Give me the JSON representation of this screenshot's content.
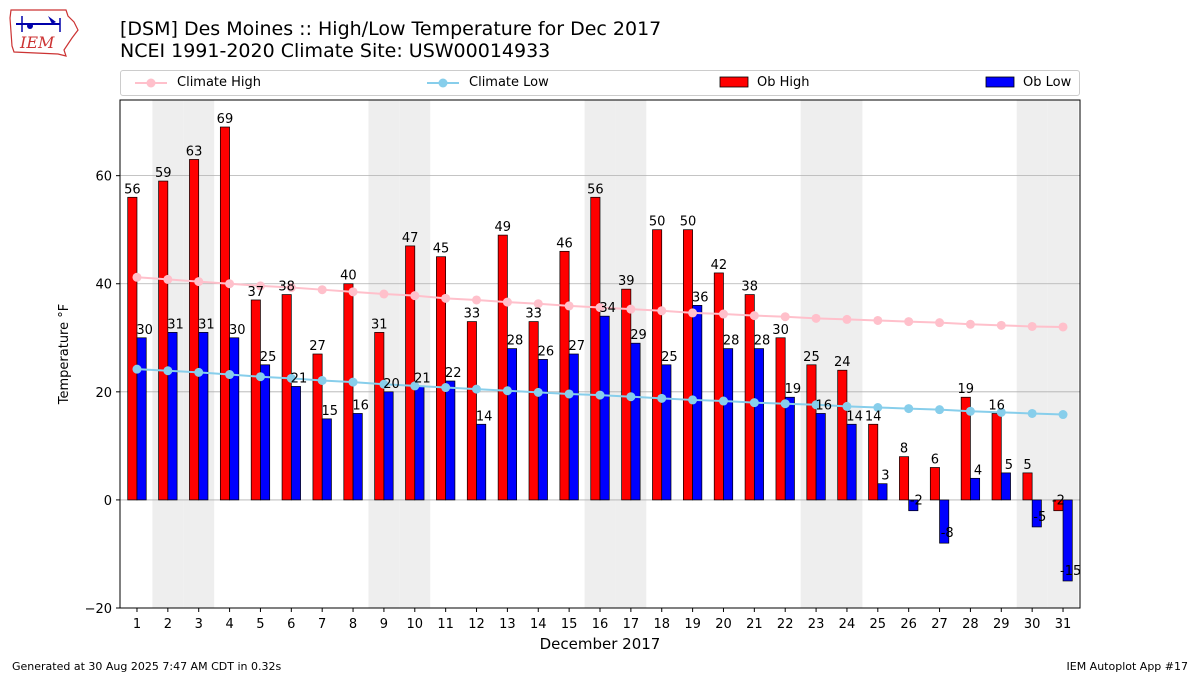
{
  "title_line1": "[DSM] Des Moines :: High/Low Temperature for Dec 2017",
  "title_line2": "NCEI 1991-2020 Climate Site: USW00014933",
  "logo_text": "IEM",
  "footer_left": "Generated at 30 Aug 2025 7:47 AM CDT in 0.32s",
  "footer_right": "IEM Autoplot App #17",
  "legend": {
    "climate_high": "Climate High",
    "climate_low": "Climate Low",
    "ob_high": "Ob High",
    "ob_low": "Ob Low"
  },
  "colors": {
    "ob_high": "#ff0000",
    "ob_low": "#0000ff",
    "climate_high": "#ffc0cb",
    "climate_low": "#87ceeb",
    "weekend_shade": "#eeeeee",
    "grid": "#b0b0b0"
  },
  "chart_data": {
    "type": "bar",
    "xlabel": "December 2017",
    "ylabel": "Temperature °F",
    "ylim": [
      -20,
      74
    ],
    "yticks": [
      -20,
      0,
      20,
      40,
      60
    ],
    "grid": "horizontal",
    "legend_position": "top",
    "categories": [
      "1",
      "2",
      "3",
      "4",
      "5",
      "6",
      "7",
      "8",
      "9",
      "10",
      "11",
      "12",
      "13",
      "14",
      "15",
      "16",
      "17",
      "18",
      "19",
      "20",
      "21",
      "22",
      "23",
      "24",
      "25",
      "26",
      "27",
      "28",
      "29",
      "30",
      "31"
    ],
    "shaded_days": [
      2,
      3,
      9,
      10,
      16,
      17,
      23,
      24,
      30,
      31
    ],
    "series": [
      {
        "name": "Ob High",
        "kind": "bar",
        "values": [
          56,
          59,
          63,
          69,
          37,
          38,
          27,
          40,
          31,
          47,
          45,
          33,
          49,
          33,
          46,
          56,
          39,
          50,
          50,
          42,
          38,
          30,
          25,
          24,
          14,
          8,
          6,
          19,
          16,
          5,
          -2
        ]
      },
      {
        "name": "Ob Low",
        "kind": "bar",
        "values": [
          30,
          31,
          31,
          30,
          25,
          21,
          15,
          16,
          20,
          21,
          22,
          14,
          28,
          26,
          27,
          34,
          29,
          25,
          36,
          28,
          28,
          19,
          16,
          14,
          3,
          -2,
          -8,
          4,
          5,
          -5,
          -15
        ]
      },
      {
        "name": "Climate High",
        "kind": "line",
        "values": [
          41.2,
          40.8,
          40.4,
          40.0,
          39.6,
          39.3,
          38.9,
          38.5,
          38.1,
          37.8,
          37.3,
          37.0,
          36.6,
          36.3,
          35.9,
          35.6,
          35.3,
          35.0,
          34.6,
          34.4,
          34.1,
          33.9,
          33.6,
          33.4,
          33.2,
          33.0,
          32.8,
          32.5,
          32.3,
          32.1,
          32.0
        ]
      },
      {
        "name": "Climate Low",
        "kind": "line",
        "values": [
          24.2,
          23.9,
          23.6,
          23.2,
          22.8,
          22.5,
          22.1,
          21.8,
          21.4,
          21.1,
          20.8,
          20.5,
          20.2,
          19.9,
          19.6,
          19.4,
          19.1,
          18.8,
          18.5,
          18.3,
          18.0,
          17.8,
          17.6,
          17.3,
          17.1,
          16.9,
          16.7,
          16.4,
          16.2,
          16.0,
          15.8
        ]
      }
    ]
  }
}
